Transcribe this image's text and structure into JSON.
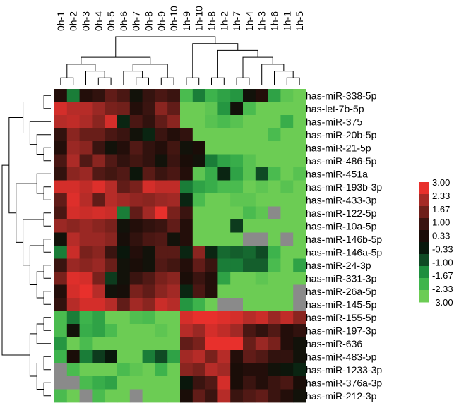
{
  "chart_data": {
    "type": "heatmap",
    "columns": [
      "0h-1",
      "0h-2",
      "0h-3",
      "0h-4",
      "0h-5",
      "0h-6",
      "0h-7",
      "0h-8",
      "0h-9",
      "0h-10",
      "1h-9",
      "1h-10",
      "1h-8",
      "1h-2",
      "1h-7",
      "1h-4",
      "1h-3",
      "1h-6",
      "1h-1",
      "1h-5"
    ],
    "rows": [
      "has-miR-338-5p",
      "has-let-7b-5p",
      "has-miR-375",
      "has-miR-20b-5p",
      "has-miR-21-5p",
      "has-miR-486-5p",
      "has-miR-451a",
      "has-miR-193b-3p",
      "has-miR-433-3p",
      "has-miR-122-5p",
      "has-miR-10a-5p",
      "has-miR-146b-5p",
      "has-miR-146a-5p",
      "has-miR-24-3p",
      "has-miR-331-3p",
      "has-miR-26a-5p",
      "has-miR-145-5p",
      "has-miR-155-5p",
      "has-miR-197-3p",
      "has-miR-636",
      "has-miR-483-5p",
      "has-miR-1233-3p",
      "has-miR-376a-3p",
      "has-miR-212-3p"
    ],
    "values": [
      [
        0.5,
        -1.5,
        0.5,
        0.8,
        1.5,
        1.2,
        0.0,
        0.9,
        1.2,
        1.0,
        -2.5,
        -1.5,
        -2.3,
        -2.0,
        -1.8,
        0.0,
        0.5,
        -2.0,
        -2.8,
        -3.0
      ],
      [
        2.8,
        2.5,
        2.5,
        2.2,
        1.8,
        1.7,
        0.5,
        1.0,
        2.0,
        1.5,
        -3.0,
        -3.0,
        -2.8,
        -1.8,
        0.0,
        -2.5,
        -3.0,
        -3.0,
        -3.0,
        -3.0
      ],
      [
        2.5,
        2.6,
        2.4,
        2.0,
        2.8,
        -0.5,
        1.2,
        0.8,
        1.5,
        2.0,
        -3.0,
        -3.0,
        -2.7,
        -2.5,
        -2.7,
        -3.0,
        -3.0,
        -3.0,
        -2.2,
        -3.0
      ],
      [
        0.8,
        2.0,
        1.6,
        1.6,
        1.2,
        1.0,
        0.0,
        -0.5,
        1.0,
        0.5,
        0.8,
        -3.0,
        -3.0,
        -3.0,
        -3.0,
        -3.0,
        -3.0,
        -2.5,
        -3.0,
        -3.0
      ],
      [
        0.5,
        2.2,
        2.0,
        1.0,
        0.0,
        0.5,
        1.3,
        0.8,
        0.5,
        1.1,
        0.0,
        0.3,
        -3.0,
        -3.0,
        -3.0,
        -3.0,
        -3.0,
        -3.0,
        -3.0,
        -3.0
      ],
      [
        1.2,
        2.4,
        1.3,
        2.0,
        1.3,
        0.8,
        1.1,
        0.8,
        0.0,
        1.0,
        0.3,
        0.0,
        -1.5,
        -2.0,
        -2.2,
        -2.7,
        -3.0,
        -3.0,
        -3.0,
        -3.0
      ],
      [
        0.8,
        2.0,
        2.2,
        1.3,
        1.1,
        1.3,
        -0.2,
        1.4,
        1.0,
        1.2,
        0.5,
        -2.8,
        -2.2,
        -0.5,
        -2.0,
        -2.7,
        -1.0,
        -2.5,
        -3.0,
        -2.7
      ],
      [
        2.8,
        2.8,
        2.6,
        2.9,
        2.5,
        1.5,
        1.8,
        2.8,
        2.6,
        2.6,
        -1.5,
        -2.0,
        -2.2,
        -2.5,
        -2.5,
        -3.0,
        -2.8,
        -3.0,
        -2.7,
        -3.0
      ],
      [
        1.5,
        2.9,
        2.5,
        1.5,
        2.5,
        2.3,
        2.1,
        2.0,
        2.2,
        2.3,
        -0.5,
        -2.5,
        -3.0,
        -3.0,
        -2.8,
        -2.8,
        -3.0,
        -3.0,
        -3.0,
        -3.0
      ],
      [
        1.2,
        2.8,
        2.7,
        2.8,
        2.7,
        -1.5,
        1.5,
        2.3,
        3.0,
        1.8,
        1.0,
        -3.0,
        -3.0,
        -3.0,
        -3.0,
        -2.5,
        -2.8,
        null,
        -3.0,
        -3.0
      ],
      [
        2.2,
        2.0,
        2.2,
        2.0,
        1.8,
        0.0,
        0.5,
        0.8,
        1.0,
        1.5,
        0.5,
        -3.0,
        -3.0,
        -3.0,
        -0.8,
        -3.0,
        -3.0,
        -3.0,
        -3.0,
        -3.0
      ],
      [
        0.0,
        2.5,
        2.2,
        2.2,
        2.0,
        0.2,
        0.8,
        1.2,
        1.3,
        0.0,
        0.5,
        -3.0,
        -3.0,
        -3.0,
        -3.0,
        null,
        null,
        -3.0,
        null,
        -3.0
      ],
      [
        -1.5,
        2.7,
        1.8,
        2.0,
        1.0,
        -0.3,
        0.5,
        0.0,
        1.4,
        1.4,
        -0.5,
        2.0,
        -0.5,
        -1.3,
        -1.2,
        -1.3,
        -1.0,
        -2.3,
        -3.0,
        -3.0
      ],
      [
        1.0,
        2.2,
        2.0,
        2.2,
        1.6,
        0.0,
        0.3,
        0.0,
        1.3,
        1.1,
        0.5,
        1.5,
        1.0,
        -1.5,
        -1.5,
        -1.2,
        -1.2,
        -2.5,
        -3.0,
        -2.0
      ],
      [
        1.8,
        2.9,
        2.8,
        1.8,
        -0.8,
        0.0,
        1.0,
        1.3,
        1.8,
        2.0,
        0.3,
        1.0,
        0.5,
        -2.0,
        -3.0,
        -3.0,
        -2.8,
        -3.0,
        -3.0,
        -3.0
      ],
      [
        0.5,
        2.8,
        3.0,
        2.5,
        0.0,
        0.2,
        1.8,
        1.5,
        2.0,
        2.3,
        -0.5,
        1.2,
        0.5,
        -3.0,
        -3.0,
        -3.0,
        -3.0,
        -3.0,
        -3.0,
        null
      ],
      [
        0.8,
        2.5,
        2.8,
        2.8,
        2.5,
        1.5,
        2.3,
        2.0,
        2.7,
        2.5,
        -1.8,
        -2.3,
        -3.0,
        null,
        null,
        -3.0,
        -3.0,
        -3.0,
        -3.0,
        null
      ],
      [
        -2.5,
        -1.5,
        -2.3,
        -2.0,
        -3.0,
        -3.0,
        -2.6,
        -2.5,
        -3.0,
        -3.0,
        2.8,
        3.0,
        3.0,
        2.9,
        2.8,
        2.5,
        2.7,
        2.2,
        2.6,
        2.0
      ],
      [
        -2.5,
        0.0,
        -2.2,
        -2.0,
        -2.5,
        -3.0,
        -3.0,
        -3.0,
        -2.8,
        -3.0,
        2.5,
        2.2,
        2.8,
        2.6,
        2.3,
        1.2,
        0.8,
        1.3,
        0.5,
        0.8
      ],
      [
        -1.8,
        -3.0,
        -2.5,
        -3.0,
        -3.0,
        -3.0,
        -3.0,
        -3.0,
        -3.0,
        -3.0,
        1.5,
        1.8,
        3.0,
        3.0,
        3.0,
        1.6,
        2.2,
        1.8,
        0.5,
        0.0
      ],
      [
        -2.3,
        0.3,
        -1.5,
        -0.8,
        -0.3,
        -3.0,
        -3.0,
        -1.5,
        -1.0,
        -2.0,
        2.3,
        2.5,
        1.8,
        2.5,
        0.5,
        1.5,
        1.3,
        0.8,
        0.8,
        0.0
      ],
      [
        null,
        -2.5,
        -3.0,
        -3.0,
        -3.0,
        -2.5,
        -2.8,
        -3.0,
        -2.3,
        -3.0,
        2.0,
        1.8,
        2.5,
        2.3,
        0.3,
        0.5,
        0.5,
        0.0,
        -0.2,
        -0.5
      ],
      [
        null,
        null,
        -2.5,
        -2.2,
        -2.0,
        -3.0,
        -3.0,
        -3.0,
        -3.0,
        -3.0,
        -0.3,
        1.0,
        1.3,
        2.8,
        0.3,
        1.0,
        0.5,
        1.0,
        1.2,
        0.3
      ],
      [
        -2.5,
        -3.0,
        null,
        -2.5,
        -3.0,
        -3.0,
        null,
        -3.0,
        -3.0,
        -3.0,
        0.3,
        1.5,
        1.0,
        2.5,
        1.0,
        1.3,
        1.5,
        1.0,
        0.5,
        0.0
      ]
    ],
    "legend": {
      "ticks": [
        "3.00",
        "2.33",
        "1.67",
        "1.00",
        "0.33",
        "-0.33",
        "-1.00",
        "-1.67",
        "-2.33",
        "-3.00"
      ],
      "colors": [
        "#e8302c",
        "#a52a26",
        "#6e1f1a",
        "#3a1410",
        "#1b0c08",
        "#08180c",
        "#0f4a24",
        "#1e8e3e",
        "#3fb54d",
        "#6ccc54"
      ],
      "range": [
        -3,
        3
      ],
      "placement": "right"
    },
    "column_dendrogram": "top",
    "row_dendrogram": "left",
    "missing_color": "#8a8a8a"
  }
}
